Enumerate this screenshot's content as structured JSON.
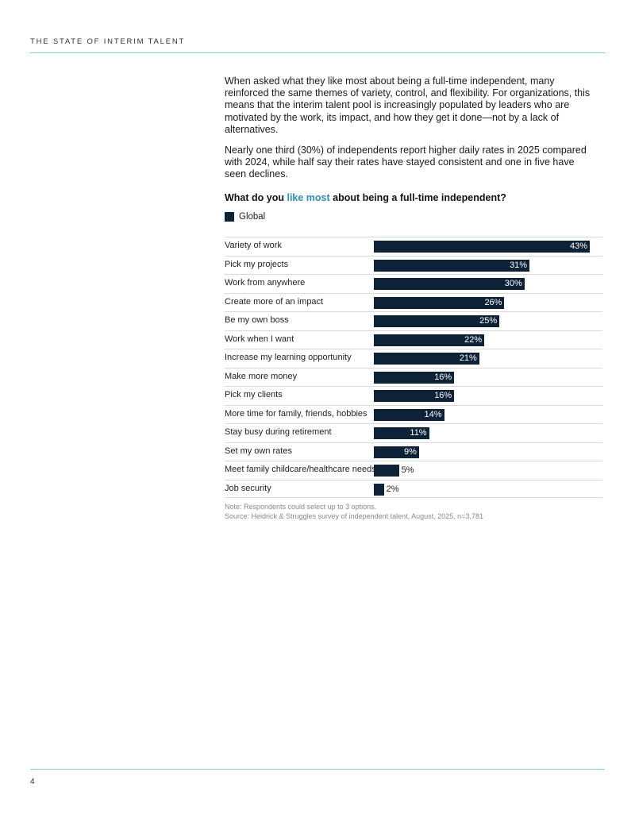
{
  "header": {
    "running_title": "THE STATE OF INTERIM TALENT"
  },
  "body": {
    "paragraphs": [
      "When asked what they like most about being a full-time independent, many reinforced the same themes of variety, control, and flexibility. For organizations, this means that the interim talent pool is increasingly populated by leaders who are motivated by the work, its impact, and how they get it done—not by a lack of alternatives.",
      "Nearly one third (30%) of independents report higher daily rates in 2025 compared with 2024, while half say their rates have stayed consistent and one in five have seen declines."
    ]
  },
  "chart_data": {
    "type": "bar",
    "orientation": "horizontal",
    "title_parts": [
      "What do you ",
      "like most",
      " about being a full-time independent?"
    ],
    "categories": [
      "Variety of work",
      "Pick my projects",
      "Work from anywhere",
      "Create more of an impact",
      "Be my own boss",
      "Work when I want",
      "Increase my learning opportunity",
      "Make more money",
      "Pick my clients",
      "More time for family, friends, hobbies",
      "Stay busy during retirement",
      "Set my own rates",
      "Meet family childcare/healthcare needs",
      "Job security"
    ],
    "series": [
      {
        "name": "Global",
        "values": [
          43,
          31,
          30,
          26,
          25,
          22,
          21,
          16,
          16,
          14,
          11,
          9,
          5,
          2
        ]
      }
    ],
    "value_suffix": "%",
    "xlim": [
      0,
      43
    ],
    "legend_position": "top-left",
    "grid": false
  },
  "notes": {
    "note": "Note: Respondents could select up to 3 options.",
    "source": "Source: Heidrick & Struggles survey of independent talent, August, 2025, n=3,781"
  },
  "footer": {
    "page_number": "4"
  },
  "colors": {
    "bar": "#0d2137",
    "accent": "#2a8fb0",
    "rule": "#7fd0e3"
  }
}
